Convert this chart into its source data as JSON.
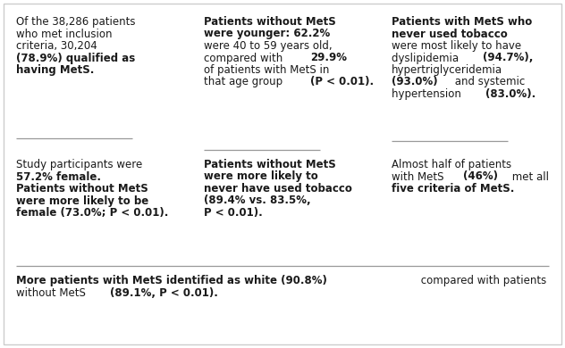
{
  "bg_color": "#ffffff",
  "text_color": "#1a1a1a",
  "sep_color": "#999999",
  "font_size": 8.5,
  "col0_row0": [
    {
      "t": "Of the 38,286 patients\nwho met inclusion\ncriteria, 30,204\n",
      "b": false
    },
    {
      "t": "(78.9%) qualified as\nhaving MetS.",
      "b": true
    }
  ],
  "col1_row0": [
    {
      "t": "Patients without MetS\nwere younger: 62.2%\n",
      "b": true
    },
    {
      "t": "were 40 to 59 years old,\ncompared with ",
      "b": false
    },
    {
      "t": "29.9%\n",
      "b": true
    },
    {
      "t": "of patients with MetS in\nthat age group ",
      "b": false
    },
    {
      "t": "(P < 0.01).",
      "b": true
    }
  ],
  "col2_row0": [
    {
      "t": "Patients with MetS who\nnever used tobacco\n",
      "b": true
    },
    {
      "t": "were most likely to have\ndyslipidemia ",
      "b": false
    },
    {
      "t": "(94.7%),\n",
      "b": true
    },
    {
      "t": "hypertriglyceridemia\n",
      "b": false
    },
    {
      "t": "(93.0%)",
      "b": true
    },
    {
      "t": " and systemic\nhypertension ",
      "b": false
    },
    {
      "t": "(83.0%).",
      "b": true
    }
  ],
  "col0_row1": [
    {
      "t": "Study participants were\n",
      "b": false
    },
    {
      "t": "57.2% female.\nPatients without MetS\nwere more likely to be\nfemale (73.0%; P < 0.01).",
      "b": true
    }
  ],
  "col1_row1": [
    {
      "t": "Patients without MetS\nwere more likely to\nnever have used tobacco\n(89.4% vs. 83.5%,\nP < 0.01).",
      "b": true
    }
  ],
  "col2_row1": [
    {
      "t": "Almost half of patients\nwith MetS ",
      "b": false
    },
    {
      "t": "(46%)",
      "b": true
    },
    {
      "t": " met all\n",
      "b": false
    },
    {
      "t": "five criteria of MetS.",
      "b": true
    }
  ],
  "footer": [
    {
      "t": "More patients with MetS identified as white (90.8%)",
      "b": true
    },
    {
      "t": " compared with patients\nwithout MetS ",
      "b": false
    },
    {
      "t": "(89.1%, P < 0.01).",
      "b": true
    }
  ]
}
